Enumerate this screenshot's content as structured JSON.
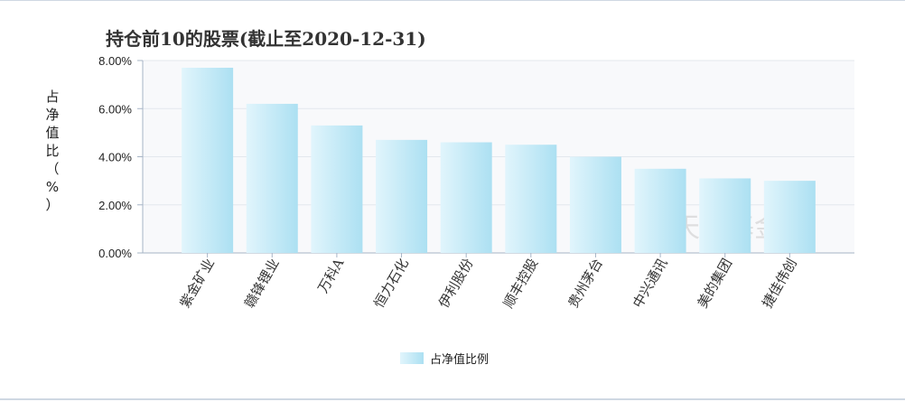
{
  "chart_data": {
    "type": "bar",
    "title": "持仓前10的股票(截止至2020-12-31)",
    "ylabel": "占净值比（%）",
    "ylim": [
      0,
      8
    ],
    "yticks": [
      "0.00%",
      "2.00%",
      "4.00%",
      "6.00%",
      "8.00%"
    ],
    "categories": [
      "紫金矿业",
      "赣锋锂业",
      "万科A",
      "恒力石化",
      "伊利股份",
      "顺丰控股",
      "贵州茅台",
      "中兴通讯",
      "美的集团",
      "捷佳伟创"
    ],
    "series": [
      {
        "name": "占净值比例",
        "values": [
          7.7,
          6.2,
          5.3,
          4.7,
          4.6,
          4.5,
          4.0,
          3.5,
          3.1,
          3.0
        ]
      }
    ],
    "legend_position": "bottom-center",
    "grid": true
  },
  "watermark": "天天基金网",
  "colors": {
    "bar_start": "#e1f5fc",
    "bar_end": "#ace0f2",
    "grid": "#e3e8ee",
    "axis": "#a6b4c6",
    "plot_bg": "#f8f9fb"
  }
}
